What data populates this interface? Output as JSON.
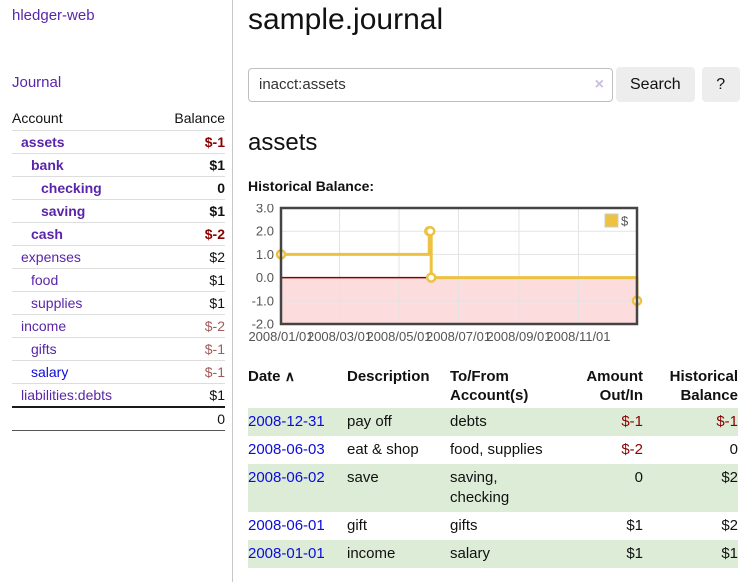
{
  "colors": {
    "link_purple": "#5a25aa",
    "link_blue": "#0b0bdd",
    "negative_dark": "#8b0000",
    "negative_light": "#a05c5c",
    "row_green": "#ddecd7",
    "chart_gold": "#edc240",
    "chart_negative_region": "#fcdcdc",
    "chart_zero_line": "#8b0000"
  },
  "app": {
    "brand": "hledger-web"
  },
  "sidebar": {
    "journal_label": "Journal",
    "accounts_table": {
      "account_header": "Account",
      "balance_header": "Balance",
      "rows": [
        {
          "name": "assets",
          "depth": 0,
          "balance": "$-1",
          "selected": true,
          "negative": "dark"
        },
        {
          "name": "bank",
          "depth": 1,
          "balance": "$1",
          "selected": true,
          "negative": null
        },
        {
          "name": "checking",
          "depth": 2,
          "balance": "0",
          "selected": true,
          "negative": null
        },
        {
          "name": "saving",
          "depth": 2,
          "balance": "$1",
          "selected": true,
          "negative": null
        },
        {
          "name": "cash",
          "depth": 1,
          "balance": "$-2",
          "selected": true,
          "negative": "dark"
        },
        {
          "name": "expenses",
          "depth": 0,
          "balance": "$2",
          "selected": false,
          "negative": null
        },
        {
          "name": "food",
          "depth": 1,
          "balance": "$1",
          "selected": false,
          "negative": null
        },
        {
          "name": "supplies",
          "depth": 1,
          "balance": "$1",
          "selected": false,
          "negative": null
        },
        {
          "name": "income",
          "depth": 0,
          "balance": "$-2",
          "selected": false,
          "negative": "light"
        },
        {
          "name": "gifts",
          "depth": 1,
          "balance": "$-1",
          "selected": false,
          "negative": "light"
        },
        {
          "name": "salary",
          "depth": 1,
          "balance": "$-1",
          "selected": false,
          "negative": "light",
          "visited": false
        },
        {
          "name": "liabilities:debts",
          "depth": 0,
          "balance": "$1",
          "selected": false,
          "negative": null
        }
      ],
      "total": "0"
    }
  },
  "main": {
    "title": "sample.journal",
    "search": {
      "value": "inacct:assets",
      "clear_icon": "×",
      "button_label": "Search",
      "help_label": "?"
    },
    "account_heading": "assets",
    "register_table": {
      "headers": {
        "date": "Date",
        "sort_icon": "∧",
        "description": "Description",
        "tofrom": "To/From Account(s)",
        "amount": "Amount Out/In",
        "balance": "Historical Balance"
      },
      "rows": [
        {
          "date": "2008-12-31",
          "description": "pay off",
          "tofrom": "debts",
          "amount": "$-1",
          "balance": "$-1"
        },
        {
          "date": "2008-06-03",
          "description": "eat & shop",
          "tofrom": "food, supplies",
          "amount": "$-2",
          "balance": "0"
        },
        {
          "date": "2008-06-02",
          "description": "save",
          "tofrom": "saving, checking",
          "amount": "0",
          "balance": "$2"
        },
        {
          "date": "2008-06-01",
          "description": "gift",
          "tofrom": "gifts",
          "amount": "$1",
          "balance": "$2"
        },
        {
          "date": "2008-01-01",
          "description": "income",
          "tofrom": "salary",
          "amount": "$1",
          "balance": "$1"
        }
      ]
    }
  },
  "chart_data": {
    "type": "line",
    "step": true,
    "title": "Historical Balance:",
    "legend_position": "top-right",
    "grid": true,
    "xlim": [
      "2008-01-01",
      "2008-12-31"
    ],
    "ylim": [
      -2,
      3
    ],
    "y_ticks": [
      3.0,
      2.0,
      1.0,
      0.0,
      -1.0,
      -2.0
    ],
    "x_ticks": [
      {
        "date": "2008-01-01",
        "label": "2008/01/01"
      },
      {
        "date": "2008-03-01",
        "label": "2008/03/01"
      },
      {
        "date": "2008-05-01",
        "label": "2008/05/01"
      },
      {
        "date": "2008-07-01",
        "label": "2008/07/01"
      },
      {
        "date": "2008-09-01",
        "label": "2008/09/01"
      },
      {
        "date": "2008-11-01",
        "label": "2008/11/01"
      }
    ],
    "series": [
      {
        "name": "$",
        "points": [
          {
            "date": "2008-01-01",
            "value": 1
          },
          {
            "date": "2008-06-01",
            "value": 2
          },
          {
            "date": "2008-06-02",
            "value": 2
          },
          {
            "date": "2008-06-03",
            "value": 0
          },
          {
            "date": "2008-12-31",
            "value": -1
          }
        ]
      }
    ]
  }
}
